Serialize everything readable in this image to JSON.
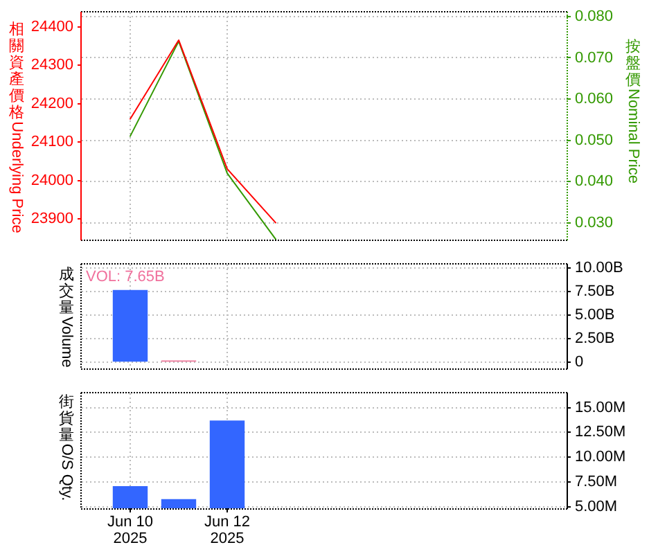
{
  "chart_data": [
    {
      "type": "line",
      "x": [
        "2025-06-10",
        "2025-06-11",
        "2025-06-12",
        "2025-06-13"
      ],
      "series": [
        {
          "color": "#ff0000",
          "values": [
            24160,
            24365,
            24030,
            23890
          ]
        },
        {
          "color": "#339900",
          "axis": "y2",
          "values": [
            0.051,
            0.074,
            0.042,
            0.026
          ]
        }
      ],
      "ylabel": "相關資產價格Underlying Price",
      "y2label": "按盤價Nominal Price",
      "xlim": [
        "2025-06-09",
        "2025-06-19"
      ],
      "xticks": [
        {
          "value": "2025-06-10",
          "label": null
        },
        {
          "value": "2025-06-12",
          "label": null
        }
      ],
      "ylim": [
        23846,
        24437
      ],
      "yticks": [
        23900,
        24000,
        24100,
        24200,
        24300,
        24400
      ],
      "y2lim": [
        0.0259,
        0.081
      ],
      "y2ticks": [
        {
          "value": 0.03,
          "label": "0.030"
        },
        {
          "value": 0.04,
          "label": "0.040"
        },
        {
          "value": 0.05,
          "label": "0.050"
        },
        {
          "value": 0.06,
          "label": "0.060"
        },
        {
          "value": 0.07,
          "label": "0.070"
        },
        {
          "value": 0.08,
          "label": "0.080"
        }
      ],
      "grid": true,
      "marker": "none",
      "tick_labels": "y"
    },
    {
      "type": "bar",
      "x": [
        "2025-06-10",
        "2025-06-11"
      ],
      "values": [
        7650000000,
        200000000
      ],
      "colors": [
        "#3366ff",
        "#ee7799"
      ],
      "ylabel": "成交量Volume",
      "xlim": [
        "2025-06-09",
        "2025-06-19"
      ],
      "xticks": [
        {
          "value": "2025-06-10",
          "label": null
        },
        {
          "value": "2025-06-12",
          "label": null
        }
      ],
      "ylim": [
        -650000000,
        10350000000
      ],
      "yticks": [
        0,
        {
          "value": 2500000000,
          "label": "2.50B"
        },
        {
          "value": 5000000000,
          "label": "5.00B"
        },
        {
          "value": 7500000000,
          "label": "7.50B"
        },
        {
          "value": 10000000000,
          "label": "10.00B"
        }
      ],
      "grid": true,
      "tick_labels": "y",
      "annotations": [
        "VOL: 7.65B"
      ]
    },
    {
      "type": "bar",
      "x": [
        "2025-06-10",
        "2025-06-11",
        "2025-06-12"
      ],
      "values": [
        7100000,
        5800000,
        13700000
      ],
      "color": "#3366ff",
      "ylabel": "街貨量O/S Qty.",
      "xlim": [
        "2025-06-09",
        "2025-06-19"
      ],
      "xticks": [
        {
          "value": "2025-06-10",
          "label": "Jun 10\n2025"
        },
        {
          "value": "2025-06-12",
          "label": "Jun 12\n2025"
        }
      ],
      "ylim": [
        4870000,
        16430000
      ],
      "yticks": [
        {
          "value": 5000000,
          "label": "5.00M"
        },
        {
          "value": 7500000,
          "label": "7.50M"
        },
        {
          "value": 10000000,
          "label": "10.00M"
        },
        {
          "value": 12500000,
          "label": "12.50M"
        },
        {
          "value": 15000000,
          "label": "15.00M"
        }
      ],
      "grid": true
    }
  ]
}
